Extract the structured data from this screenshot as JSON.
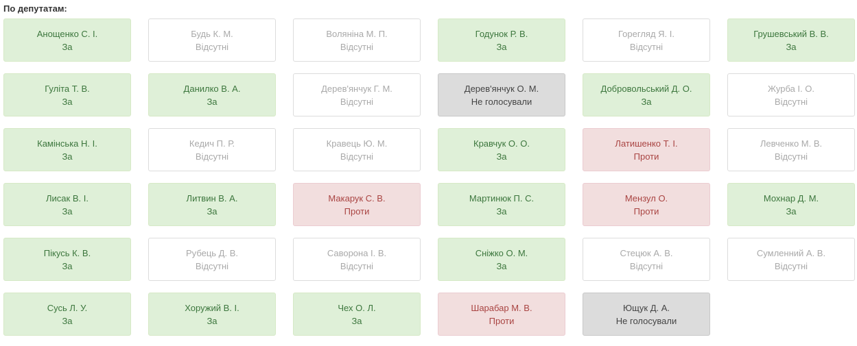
{
  "heading": "По депутатам:",
  "deputies": [
    {
      "name": "Анощенко С. І.",
      "vote": "За"
    },
    {
      "name": "Будь К. М.",
      "vote": "Відсутні"
    },
    {
      "name": "Воляніна М. П.",
      "vote": "Відсутні"
    },
    {
      "name": "Годунок Р. В.",
      "vote": "За"
    },
    {
      "name": "Горегляд Я. І.",
      "vote": "Відсутні"
    },
    {
      "name": "Грушевський В. В.",
      "vote": "За"
    },
    {
      "name": "Гуліта Т. В.",
      "vote": "За"
    },
    {
      "name": "Данилко В. А.",
      "vote": "За"
    },
    {
      "name": "Дерев'янчук Г. М.",
      "vote": "Відсутні"
    },
    {
      "name": "Дерев'янчук О. М.",
      "vote": "Не голосували"
    },
    {
      "name": "Добровольський Д. О.",
      "vote": "За"
    },
    {
      "name": "Журба І. О.",
      "vote": "Відсутні"
    },
    {
      "name": "Камінська Н. І.",
      "vote": "За"
    },
    {
      "name": "Кедич П. Р.",
      "vote": "Відсутні"
    },
    {
      "name": "Кравець Ю. М.",
      "vote": "Відсутні"
    },
    {
      "name": "Кравчук О. О.",
      "vote": "За"
    },
    {
      "name": "Латишенко Т. І.",
      "vote": "Проти"
    },
    {
      "name": "Левченко М. В.",
      "vote": "Відсутні"
    },
    {
      "name": "Лисак В. І.",
      "vote": "За"
    },
    {
      "name": "Литвин В. А.",
      "vote": "За"
    },
    {
      "name": "Макарук С. В.",
      "vote": "Проти"
    },
    {
      "name": "Мартинюк П. С.",
      "vote": "За"
    },
    {
      "name": "Мензул О.",
      "vote": "Проти"
    },
    {
      "name": "Мохнар Д. М.",
      "vote": "За"
    },
    {
      "name": "Пікусь К. В.",
      "vote": "За"
    },
    {
      "name": "Рубець Д. В.",
      "vote": "Відсутні"
    },
    {
      "name": "Саворона І. В.",
      "vote": "Відсутні"
    },
    {
      "name": "Сніжко О. М.",
      "vote": "За"
    },
    {
      "name": "Стецюк А. В.",
      "vote": "Відсутні"
    },
    {
      "name": "Сумленний А. В.",
      "vote": "Відсутні"
    },
    {
      "name": "Сусь Л. У.",
      "vote": "За"
    },
    {
      "name": "Хоружий В. І.",
      "vote": "За"
    },
    {
      "name": "Чех О. Л.",
      "vote": "За"
    },
    {
      "name": "Шарабар М. В.",
      "vote": "Проти"
    },
    {
      "name": "Ющук Д. А.",
      "vote": "Не голосували"
    }
  ]
}
